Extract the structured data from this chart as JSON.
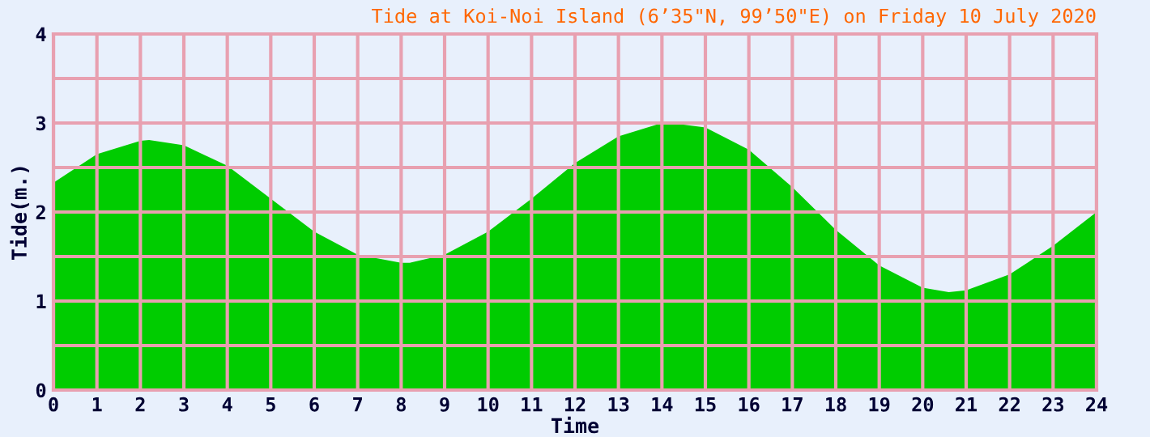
{
  "chart_data": {
    "type": "area",
    "title": "Tide at Koi-Noi Island (6’35\"N, 99’50\"E) on Friday 10 July 2020",
    "xlabel": "Time",
    "ylabel": "Tide(m.)",
    "x": [
      0,
      1,
      2,
      2.2,
      3,
      4,
      5,
      6,
      7,
      8,
      8.2,
      9,
      10,
      11,
      12,
      13,
      14,
      14.2,
      15,
      16,
      17,
      18,
      19,
      20,
      20.6,
      21,
      22,
      23,
      24
    ],
    "series": [
      {
        "color": "#00cc00",
        "values": [
          2.33,
          2.65,
          2.8,
          2.81,
          2.75,
          2.52,
          2.15,
          1.78,
          1.52,
          1.43,
          1.43,
          1.52,
          1.78,
          2.15,
          2.55,
          2.85,
          3.0,
          3.0,
          2.95,
          2.7,
          2.28,
          1.8,
          1.4,
          1.15,
          1.1,
          1.12,
          1.3,
          1.62,
          2.0
        ]
      }
    ],
    "xlim": [
      0,
      24
    ],
    "xticks": [
      0,
      1,
      2,
      3,
      4,
      5,
      6,
      7,
      8,
      9,
      10,
      11,
      12,
      13,
      14,
      15,
      16,
      17,
      18,
      19,
      20,
      21,
      22,
      23,
      24
    ],
    "ylim": [
      0,
      4
    ],
    "yticks": [
      0,
      {
        "value": 0.5,
        "label": null
      },
      1,
      {
        "value": 1.5,
        "label": null
      },
      2,
      {
        "value": 2.5,
        "label": null
      },
      3,
      {
        "value": 3.5,
        "label": null
      },
      4
    ],
    "grid": true
  }
}
